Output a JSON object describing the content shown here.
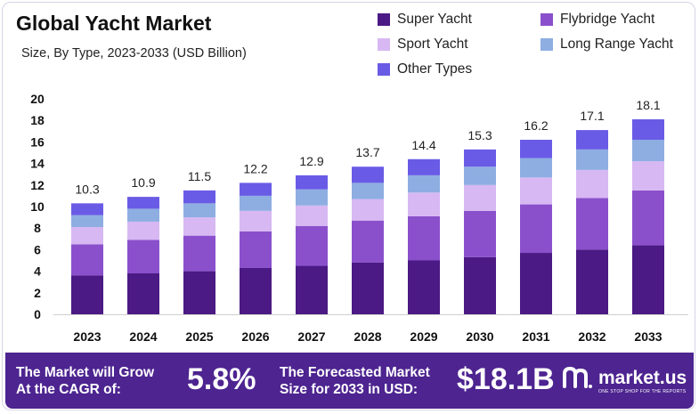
{
  "title": "Global Yacht Market",
  "subtitle": "Size, By Type, 2023-2033 (USD Billion)",
  "legend": [
    {
      "name": "Super Yacht",
      "color": "#4b1a84"
    },
    {
      "name": "Flybridge Yacht",
      "color": "#8a50cc"
    },
    {
      "name": "Sport Yacht",
      "color": "#d7b8f3"
    },
    {
      "name": "Long Range Yacht",
      "color": "#8eaee2"
    },
    {
      "name": "Other Types",
      "color": "#6a5be6"
    }
  ],
  "chart_data": {
    "type": "bar",
    "stacked": true,
    "title": "Global Yacht Market",
    "subtitle": "Size, By Type, 2023-2033 (USD Billion)",
    "categories": [
      "2023",
      "2024",
      "2025",
      "2026",
      "2027",
      "2028",
      "2029",
      "2030",
      "2031",
      "2032",
      "2033"
    ],
    "totals": [
      10.3,
      10.9,
      11.5,
      12.2,
      12.9,
      13.7,
      14.4,
      15.3,
      16.2,
      17.1,
      18.1
    ],
    "total_labels": [
      "10.3",
      "10.9",
      "11.5",
      "12.2",
      "12.9",
      "13.7",
      "14.4",
      "15.3",
      "16.2",
      "17.1",
      "18.1"
    ],
    "series": [
      {
        "name": "Super Yacht",
        "values": [
          3.6,
          3.8,
          4.0,
          4.3,
          4.5,
          4.8,
          5.0,
          5.3,
          5.7,
          6.0,
          6.4
        ]
      },
      {
        "name": "Flybridge Yacht",
        "values": [
          2.9,
          3.1,
          3.3,
          3.4,
          3.7,
          3.9,
          4.1,
          4.3,
          4.5,
          4.8,
          5.1
        ]
      },
      {
        "name": "Sport Yacht",
        "values": [
          1.6,
          1.7,
          1.7,
          1.9,
          1.9,
          2.0,
          2.2,
          2.4,
          2.5,
          2.6,
          2.7
        ]
      },
      {
        "name": "Long Range Yacht",
        "values": [
          1.1,
          1.2,
          1.3,
          1.4,
          1.5,
          1.5,
          1.6,
          1.7,
          1.8,
          1.9,
          2.0
        ]
      },
      {
        "name": "Other Types",
        "values": [
          1.1,
          1.1,
          1.2,
          1.2,
          1.3,
          1.5,
          1.5,
          1.6,
          1.7,
          1.8,
          1.9
        ]
      }
    ],
    "yticks": [
      "0",
      "2",
      "4",
      "6",
      "8",
      "10",
      "12",
      "14",
      "16",
      "18",
      "20"
    ],
    "ylim": [
      0,
      20
    ],
    "xlabel": "",
    "ylabel": ""
  },
  "footer": {
    "cagr_label_line1": "The Market will Grow",
    "cagr_label_line2": "At the CAGR of:",
    "cagr_value": "5.8%",
    "forecast_label_line1": "The Forecasted Market",
    "forecast_label_line2": "Size for 2033 in USD:",
    "forecast_value": "$18.1B",
    "brand": "market.us",
    "brand_tagline": "ONE STOP SHOP FOR THE REPORTS"
  }
}
